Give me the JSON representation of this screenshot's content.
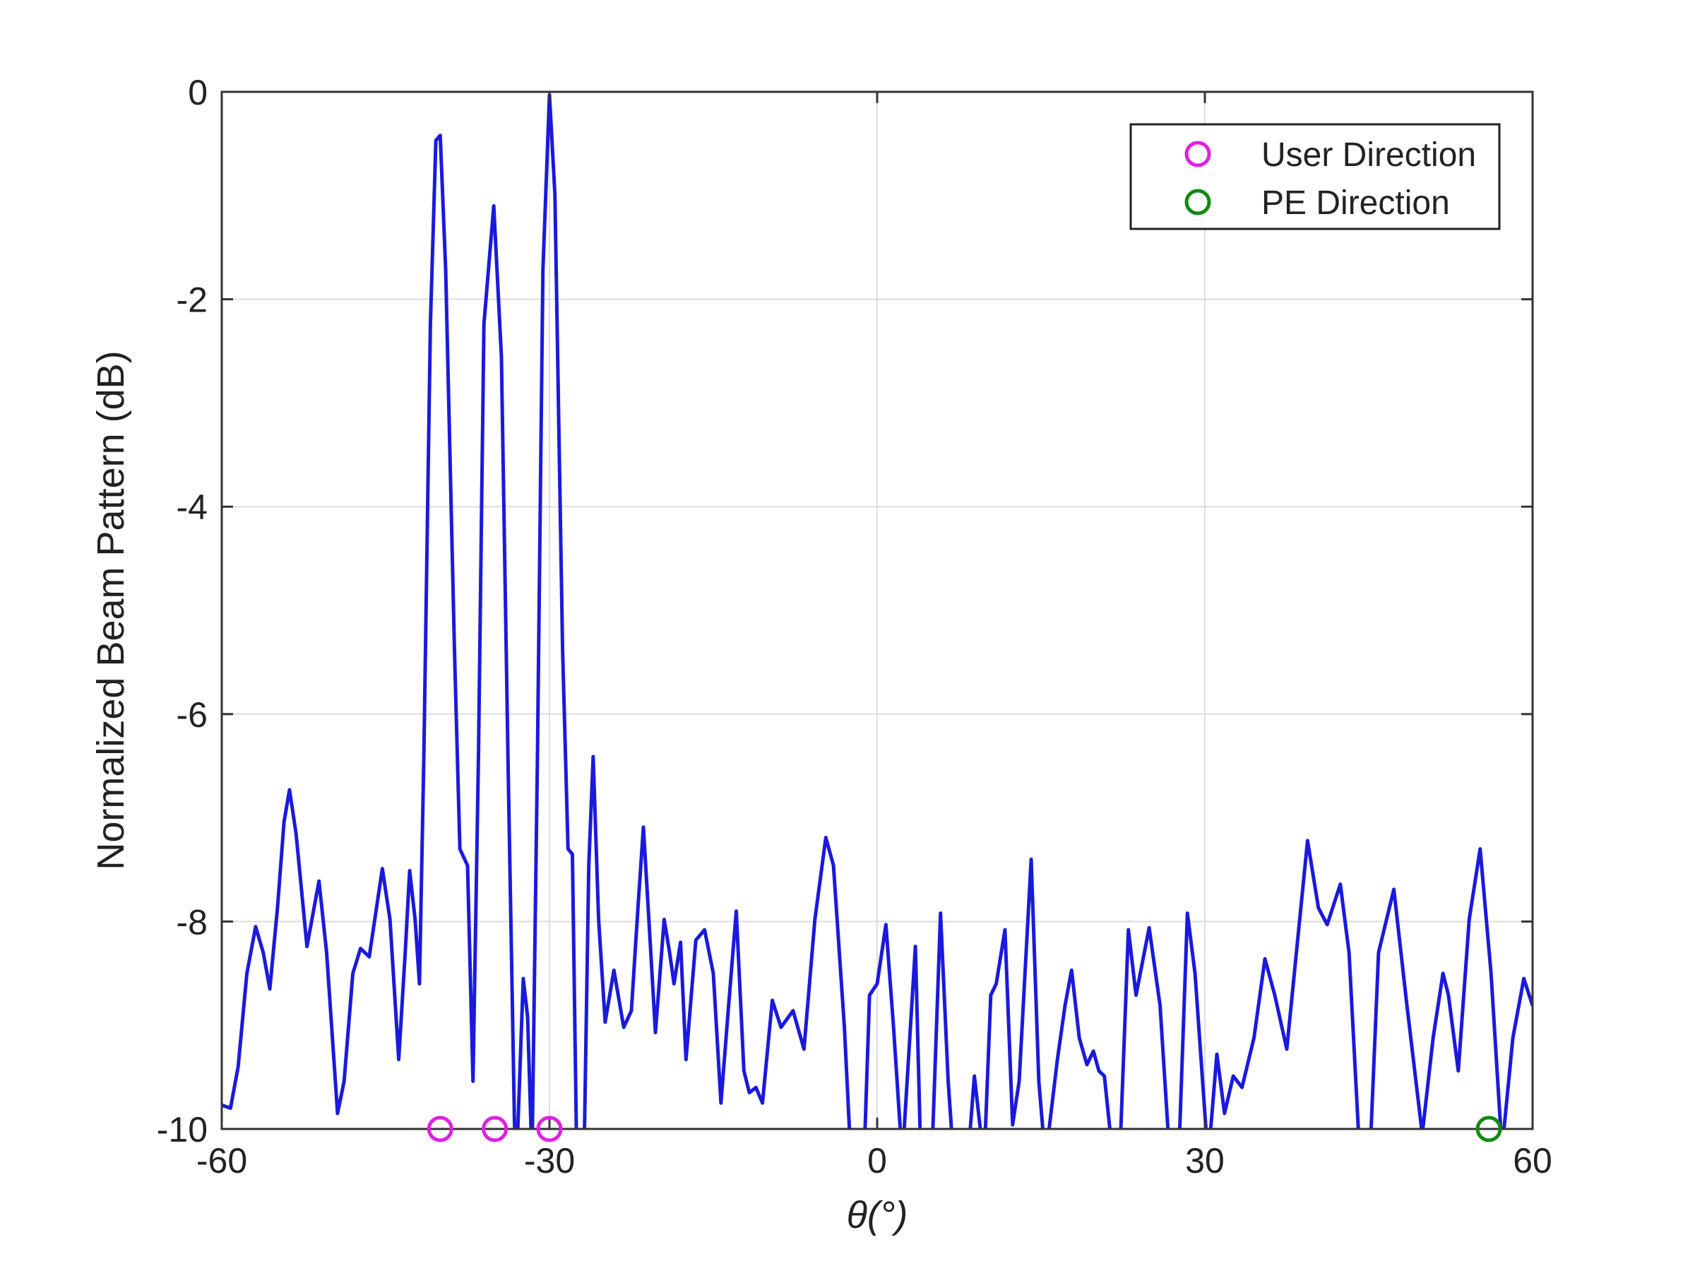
{
  "chart_data": {
    "type": "line",
    "xlabel": "θ(°)",
    "ylabel": "Normalized Beam Pattern (dB)",
    "xlim": [
      -60,
      60
    ],
    "xticks": [
      -60,
      -30,
      0,
      30,
      60
    ],
    "ylim": [
      -10,
      0
    ],
    "yticks": [
      -10,
      -8,
      -6,
      -4,
      -2,
      0
    ],
    "grid": true,
    "legend": "upper right",
    "series": [
      {
        "type": "line",
        "color": "#1a1adc",
        "x": [
          -60,
          -59.2,
          -58.5,
          -57.7,
          -56.9,
          -56.2,
          -55.6,
          -54.9,
          -54.3,
          -53.8,
          -53.2,
          -52.2,
          -51.1,
          -50.4,
          -49.4,
          -48.8,
          -48.0,
          -47.3,
          -46.5,
          -45.3,
          -44.6,
          -43.8,
          -43.2,
          -42.8,
          -42.3,
          -41.9,
          -41.5,
          -40.9,
          -40.4,
          -40.0,
          -39.5,
          -38.7,
          -38.2,
          -37.5,
          -37.0,
          -36.5,
          -36.0,
          -35.1,
          -34.4,
          -33.8,
          -33.2,
          -33.0,
          -32.4,
          -32.0,
          -31.6,
          -31.1,
          -30.6,
          -30.0,
          -29.5,
          -28.8,
          -28.3,
          -27.9,
          -27.5,
          -26.8,
          -26.4,
          -26.0,
          -25.5,
          -24.9,
          -24.1,
          -23.2,
          -22.5,
          -21.9,
          -21.4,
          -20.9,
          -20.3,
          -19.5,
          -19.0,
          -18.6,
          -18.0,
          -17.5,
          -16.6,
          -15.8,
          -15.0,
          -14.3,
          -13.6,
          -12.9,
          -12.2,
          -11.7,
          -11.1,
          -10.5,
          -9.6,
          -8.8,
          -7.7,
          -6.7,
          -5.7,
          -4.7,
          -4.0,
          -3.0,
          -2.4,
          -1.2,
          -0.7,
          0,
          0.8,
          1.5,
          2.3,
          3.5,
          4.0,
          5.0,
          5.8,
          6.5,
          7.0,
          8.3,
          8.9,
          9.4,
          9.8,
          10.4,
          10.9,
          11.7,
          12.4,
          13.0,
          14.1,
          14.8,
          15.4,
          16.5,
          17.2,
          17.8,
          18.5,
          19.2,
          19.8,
          20.3,
          20.8,
          21.6,
          22.2,
          23.0,
          23.7,
          24.9,
          25.9,
          26.8,
          27.6,
          28.4,
          29.1,
          30.3,
          31.1,
          31.8,
          32.6,
          33.4,
          34.5,
          35.5,
          36.4,
          37.5,
          39.4,
          40.4,
          41.2,
          42.4,
          43.2,
          44.2,
          45.1,
          45.9,
          47.3,
          48.5,
          49.9,
          50.9,
          51.8,
          52.3,
          53.2,
          54.2,
          55.2,
          56.2,
          57.2,
          58.2,
          59.2,
          60
        ],
        "values": [
          -9.77,
          -9.8,
          -9.4,
          -8.5,
          -8.05,
          -8.3,
          -8.65,
          -7.87,
          -7.04,
          -6.73,
          -7.15,
          -8.24,
          -7.61,
          -8.3,
          -9.85,
          -9.54,
          -8.5,
          -8.26,
          -8.34,
          -7.49,
          -7.98,
          -9.33,
          -8.29,
          -7.51,
          -7.98,
          -8.6,
          -6.41,
          -2.24,
          -0.47,
          -0.42,
          -1.72,
          -5.37,
          -7.3,
          -7.46,
          -9.54,
          -6.41,
          -2.24,
          -1.1,
          -2.55,
          -6.41,
          -9.96,
          -10.3,
          -8.55,
          -8.92,
          -10.3,
          -6.41,
          -1.72,
          -0.03,
          -0.99,
          -5.37,
          -7.3,
          -7.35,
          -10.3,
          -10.06,
          -7.46,
          -6.41,
          -7.98,
          -8.97,
          -8.47,
          -9.02,
          -8.86,
          -7.87,
          -7.09,
          -7.98,
          -9.07,
          -7.98,
          -8.3,
          -8.6,
          -8.2,
          -9.33,
          -8.18,
          -8.08,
          -8.5,
          -9.75,
          -8.81,
          -7.9,
          -9.44,
          -9.65,
          -9.6,
          -9.75,
          -8.76,
          -9.02,
          -8.86,
          -9.23,
          -7.98,
          -7.19,
          -7.46,
          -9.02,
          -10.3,
          -10.3,
          -8.71,
          -8.6,
          -8.03,
          -9.02,
          -10.3,
          -8.24,
          -10.3,
          -10.3,
          -7.92,
          -9.54,
          -10.3,
          -10.3,
          -9.49,
          -9.96,
          -10.3,
          -8.71,
          -8.6,
          -8.08,
          -9.96,
          -9.54,
          -7.4,
          -9.54,
          -10.3,
          -9.33,
          -8.81,
          -8.47,
          -9.12,
          -9.38,
          -9.25,
          -9.44,
          -9.49,
          -10.3,
          -10.3,
          -8.08,
          -8.71,
          -8.06,
          -8.81,
          -10.3,
          -10.3,
          -7.92,
          -8.5,
          -10.3,
          -9.28,
          -9.85,
          -9.49,
          -9.6,
          -9.12,
          -8.36,
          -8.71,
          -9.23,
          -7.22,
          -7.87,
          -8.03,
          -7.64,
          -8.3,
          -10.3,
          -10.3,
          -8.3,
          -7.69,
          -8.81,
          -10.05,
          -9.12,
          -8.5,
          -8.71,
          -9.44,
          -7.98,
          -7.3,
          -8.5,
          -10.2,
          -9.12,
          -8.55,
          -8.81
        ]
      },
      {
        "type": "scatter",
        "name": "User Direction",
        "color": "#e020e0",
        "x": [
          -40,
          -35,
          -30
        ],
        "values": [
          -10,
          -10,
          -10
        ]
      },
      {
        "type": "scatter",
        "name": "PE Direction",
        "color": "#108a10",
        "x": [
          56
        ],
        "values": [
          -10
        ]
      }
    ]
  }
}
